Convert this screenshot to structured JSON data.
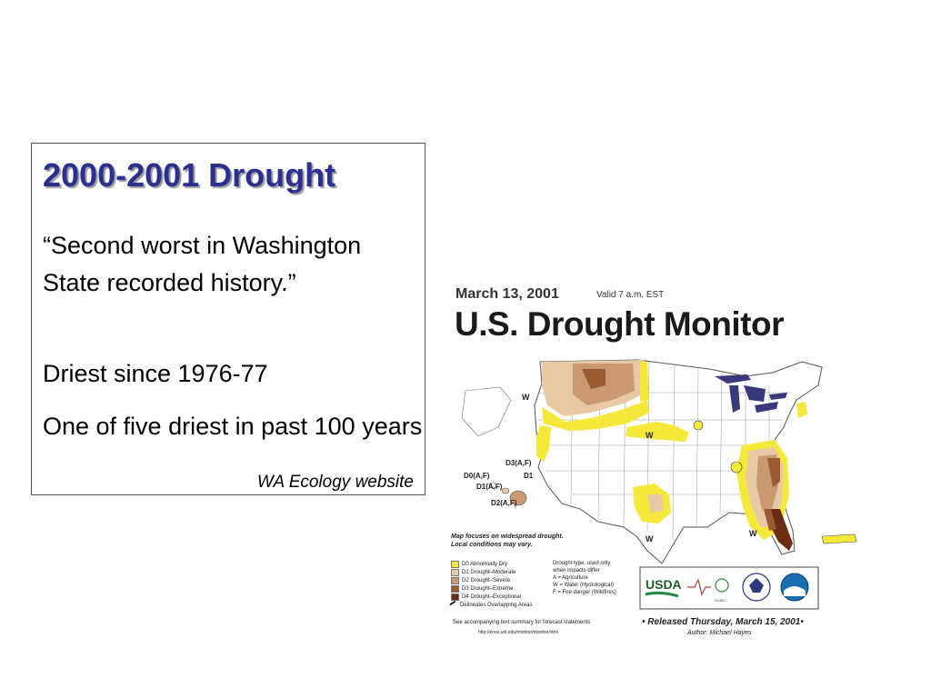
{
  "slide": {
    "title": "2000-2001 Drought",
    "quote": "“Second worst in Washington State recorded history.”",
    "point1": "Driest since 1976-77",
    "point2": "One of five driest in past 100 years",
    "source": "WA Ecology website"
  },
  "monitor": {
    "date": "March 13, 2001",
    "valid": "Valid 7 a.m. EST",
    "title": "U.S. Drought Monitor",
    "note_line1": "Map focuses on widespread drought.",
    "note_line2": "Local conditions may vary.",
    "legend": [
      {
        "label": "D0 Abnormally Dry",
        "color": "#f5e83a"
      },
      {
        "label": "D1 Drought–Moderate",
        "color": "#e7c9a6"
      },
      {
        "label": "D2 Drought–Severe",
        "color": "#c99a72"
      },
      {
        "label": "D3 Drought–Extreme",
        "color": "#9a5a32"
      },
      {
        "label": "D4 Drought–Exceptional",
        "color": "#6b2c12"
      },
      {
        "label": "Delineates Overlapping Areas",
        "color": "#222222"
      }
    ],
    "types_line1": "Drought type: used only",
    "types_line2": "when impacts differ",
    "types_a": "A = Agriculture",
    "types_w": "W = Water (Hydrological)",
    "types_f": "F = Fire danger (Wildfires)",
    "see": "See accompanying text summary for forecast statements",
    "url": "http://enso.unl.edu/monitor/monitor.html",
    "released": "• Released Thursday, March 15, 2001•",
    "author": "Author: Michael Hayes",
    "usda": "USDA",
    "hawaii_labels": [
      "D3(A,F)",
      "D0(A,F)",
      "D1",
      "D1(A,F)",
      "D2(A,F)"
    ],
    "w_labels": [
      "W",
      "W",
      "W",
      "W"
    ],
    "colors": {
      "d0": "#f5e83a",
      "d1": "#e7c9a6",
      "d2": "#c99a72",
      "d3": "#9a5a32",
      "d4": "#6b2c12",
      "lakes": "#3a3a7a",
      "title_blue": "#2b2f8f"
    }
  }
}
